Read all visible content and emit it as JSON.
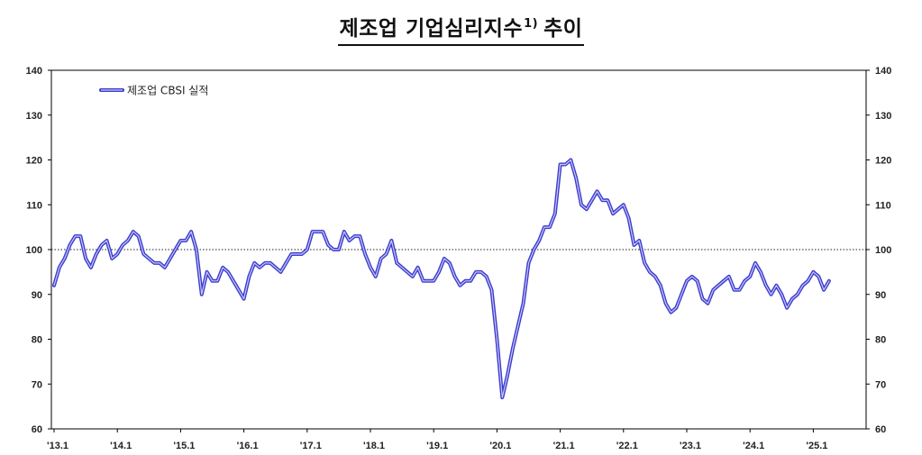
{
  "title": {
    "main": "제조업 기업심리지수",
    "footnote_mark": "1)",
    "suffix": "추이"
  },
  "colors": {
    "series": "#3c3ccf",
    "series_highlight": "#c9c9f5",
    "reference_line": "#222222",
    "axis": "#000000"
  },
  "chart_data": {
    "type": "line",
    "ylim": [
      60,
      140
    ],
    "y_ticks": [
      60,
      70,
      80,
      90,
      100,
      110,
      120,
      130,
      140
    ],
    "y_ticks_right": [
      60,
      70,
      80,
      90,
      100,
      110,
      120,
      130,
      140
    ],
    "x_start": "2013-01",
    "x_ticks": [
      "'13.1",
      "'14.1",
      "'15.1",
      "'16.1",
      "'17.1",
      "'18.1",
      "'19.1",
      "'20.1",
      "'21.1",
      "'22.1",
      "'23.1",
      "'24.1",
      "'25.1"
    ],
    "reference_line": {
      "value": 100,
      "style": "dotted"
    },
    "grid": false,
    "legend_position": "top-left",
    "series": [
      {
        "name": "제조업 CBSI 실적",
        "values": [
          92,
          96,
          98,
          101,
          103,
          103,
          98,
          96,
          99,
          101,
          102,
          98,
          99,
          101,
          102,
          104,
          103,
          99,
          98,
          97,
          97,
          96,
          98,
          100,
          102,
          102,
          104,
          100,
          90,
          95,
          93,
          93,
          96,
          95,
          93,
          91,
          89,
          94,
          97,
          96,
          97,
          97,
          96,
          95,
          97,
          99,
          99,
          99,
          100,
          104,
          104,
          104,
          101,
          100,
          100,
          104,
          102,
          103,
          103,
          99,
          96,
          94,
          98,
          99,
          102,
          97,
          96,
          95,
          94,
          96,
          93,
          93,
          93,
          95,
          98,
          97,
          94,
          92,
          93,
          93,
          95,
          95,
          94,
          91,
          80,
          67,
          72,
          78,
          83,
          88,
          97,
          100,
          102,
          105,
          105,
          108,
          119,
          119,
          120,
          116,
          110,
          109,
          111,
          113,
          111,
          111,
          108,
          109,
          110,
          107,
          101,
          102,
          97,
          95,
          94,
          92,
          88,
          86,
          87,
          90,
          93,
          94,
          93,
          89,
          88,
          91,
          92,
          93,
          94,
          91,
          91,
          93,
          94,
          97,
          95,
          92,
          90,
          92,
          90,
          87,
          89,
          90,
          92,
          93,
          95,
          94,
          91,
          93
        ]
      }
    ]
  }
}
